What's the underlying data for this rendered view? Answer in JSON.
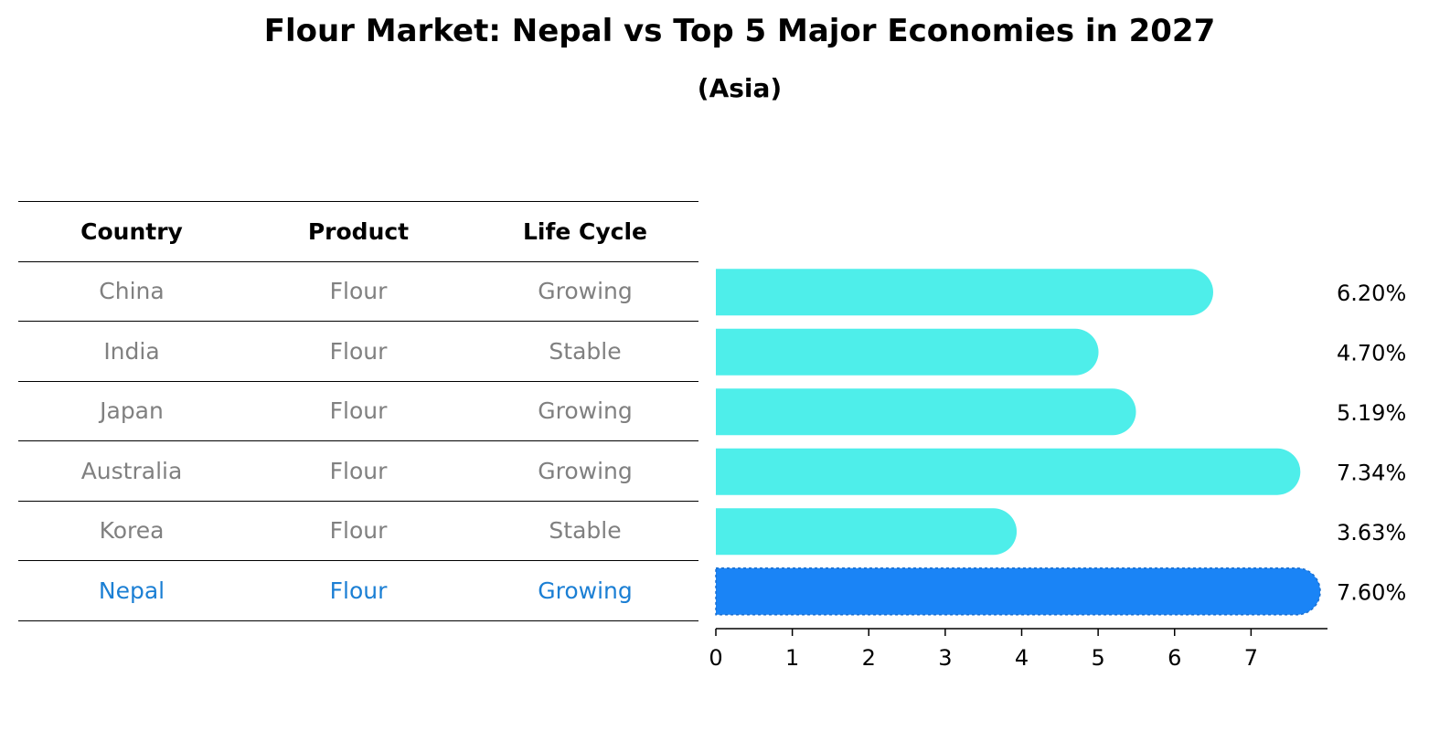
{
  "header": {
    "title": "Flour Market: Nepal vs Top 5 Major Economies in 2027",
    "subtitle": "(Asia)"
  },
  "table": {
    "columns": [
      "Country",
      "Product",
      "Life Cycle"
    ],
    "rows": [
      {
        "country": "China",
        "product": "Flour",
        "life_cycle": "Growing"
      },
      {
        "country": "India",
        "product": "Flour",
        "life_cycle": "Stable"
      },
      {
        "country": "Japan",
        "product": "Flour",
        "life_cycle": "Growing"
      },
      {
        "country": "Australia",
        "product": "Flour",
        "life_cycle": "Growing"
      },
      {
        "country": "Korea",
        "product": "Flour",
        "life_cycle": "Stable"
      },
      {
        "country": "Nepal",
        "product": "Flour",
        "life_cycle": "Growing"
      }
    ],
    "highlight_country": "Nepal"
  },
  "colors": {
    "bar": "#4eeeea",
    "highlight_bar": "#1a84f6",
    "highlight_text": "#1b7fd4",
    "muted_text": "#808080"
  },
  "chart_data": {
    "type": "bar",
    "orientation": "horizontal",
    "title": "Flour Market: Nepal vs Top 5 Major Economies in 2027",
    "subtitle": "(Asia)",
    "categories": [
      "China",
      "India",
      "Japan",
      "Australia",
      "Korea",
      "Nepal"
    ],
    "values": [
      6.2,
      4.7,
      5.19,
      7.34,
      3.63,
      7.6
    ],
    "value_labels": [
      "6.20%",
      "4.70%",
      "5.19%",
      "7.34%",
      "3.63%",
      "7.60%"
    ],
    "xlim": [
      0,
      8
    ],
    "xticks": [
      0,
      1,
      2,
      3,
      4,
      5,
      6,
      7
    ],
    "highlight": "Nepal",
    "grid": false
  }
}
